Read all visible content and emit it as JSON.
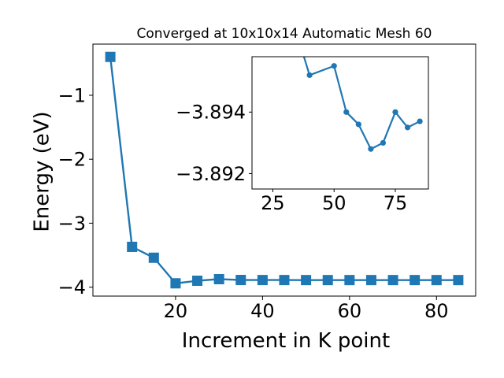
{
  "chart_data": [
    {
      "type": "line",
      "title": "Converged at 10x10x14 Automatic Mesh 60",
      "xlabel": "Increment in K point",
      "ylabel": "Energy (eV)",
      "xlim": [
        1.0,
        89.0
      ],
      "ylim": [
        -4.14,
        -0.2
      ],
      "xticks": [
        20,
        40,
        60,
        80
      ],
      "xtick_labels": [
        "20",
        "40",
        "60",
        "80"
      ],
      "yticks": [
        -4,
        -3,
        -2,
        -1
      ],
      "ytick_labels": [
        "−4",
        "−3",
        "−2",
        "−1"
      ],
      "marker": "square",
      "color": "#1f77b4",
      "grid": false,
      "series": [
        {
          "x": [
            5,
            10,
            15,
            20,
            25,
            30,
            35,
            40,
            45,
            50,
            55,
            60,
            65,
            70,
            75,
            80,
            85
          ],
          "y": [
            -0.4,
            -3.37,
            -3.54,
            -3.94,
            -3.9,
            -3.875,
            -3.888,
            -3.889,
            -3.889,
            -3.8895,
            -3.8895,
            -3.8895,
            -3.8895,
            -3.8895,
            -3.8895,
            -3.8895,
            -3.8895
          ]
        }
      ]
    },
    {
      "type": "line",
      "inset": true,
      "title": "",
      "xlabel": "",
      "ylabel": "",
      "xlim": [
        16.5,
        88.5
      ],
      "ylim": [
        -3.8915,
        -3.8958
      ],
      "xticks": [
        25,
        50,
        75
      ],
      "xtick_labels": [
        "25",
        "50",
        "75"
      ],
      "yticks": [
        -3.894,
        -3.892
      ],
      "ytick_labels": [
        "−3.894",
        "−3.892"
      ],
      "marker": "circle",
      "color": "#1f77b4",
      "grid": false,
      "series": [
        {
          "x": [
            35,
            40,
            50,
            55,
            60,
            65,
            70,
            75,
            80,
            85
          ],
          "y": [
            -3.8965,
            -3.8952,
            -3.8955,
            -3.894,
            -3.8936,
            -3.8928,
            -3.893,
            -3.894,
            -3.8935,
            -3.8937
          ]
        }
      ]
    }
  ]
}
